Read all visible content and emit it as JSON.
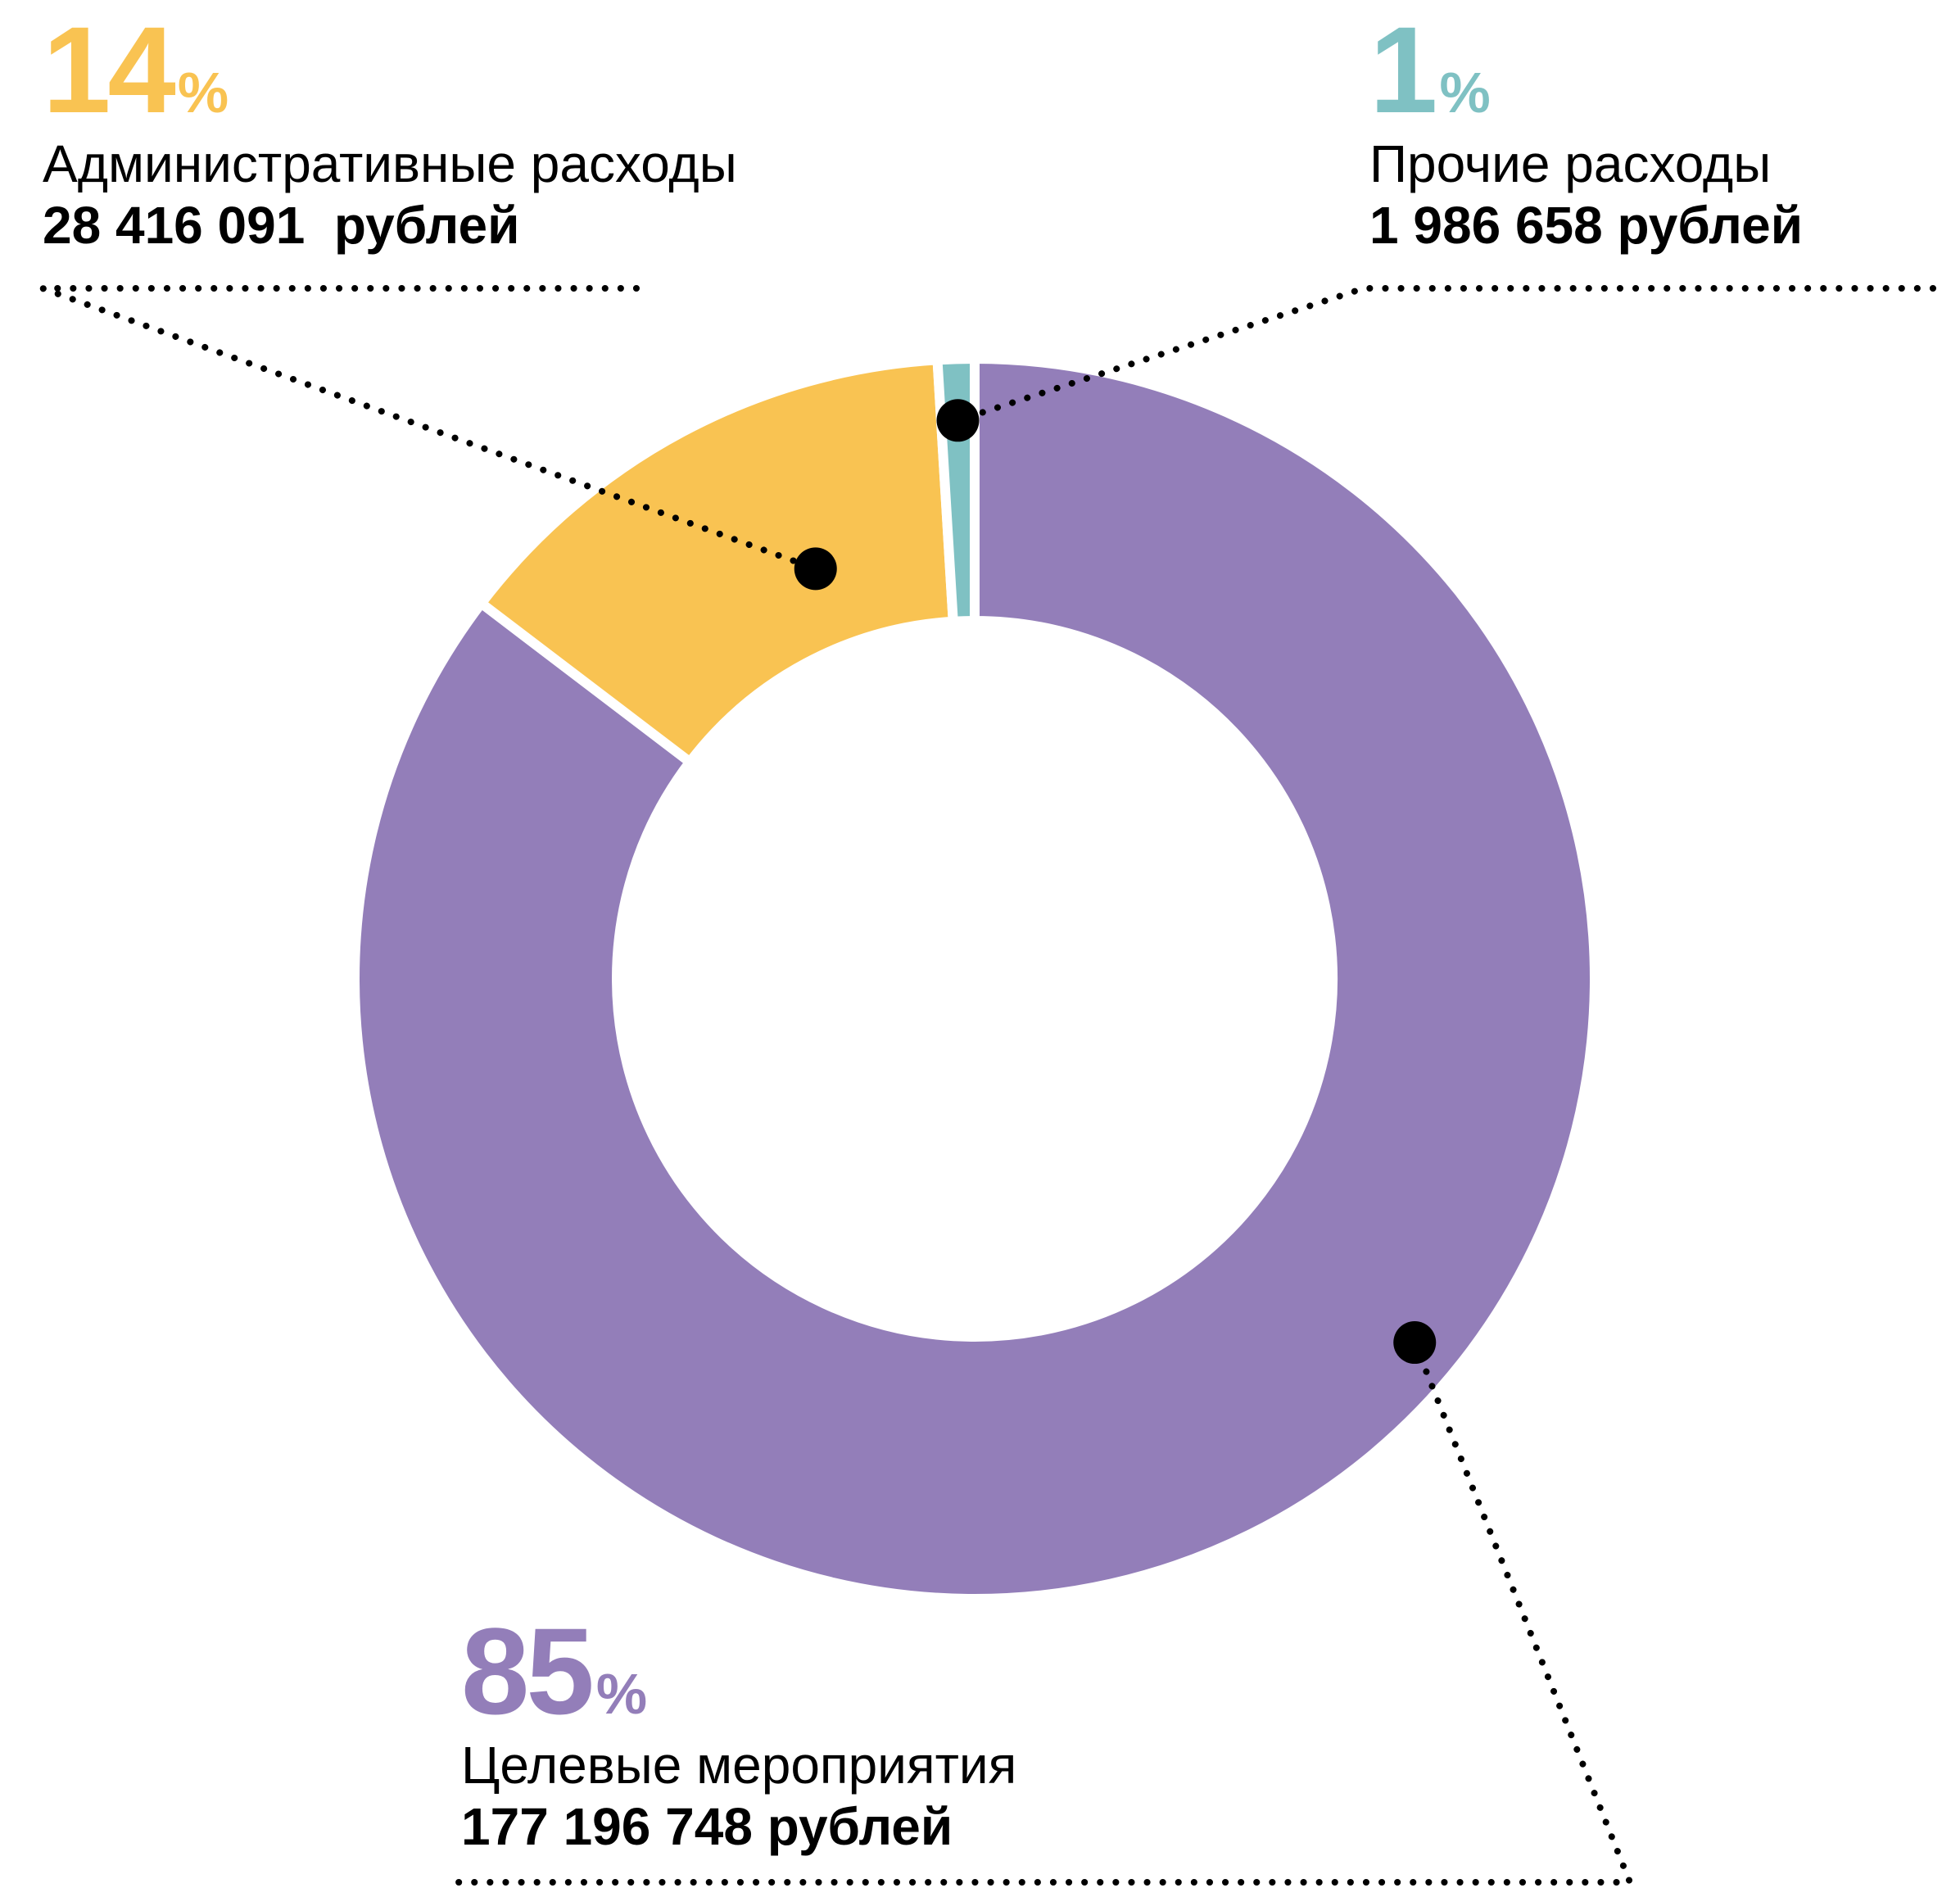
{
  "chart_data": {
    "type": "pie",
    "style": "donut",
    "slices": [
      {
        "label": "Целевые мероприятия",
        "percent": 85,
        "percent_label": "85",
        "amount_label": "177 196 748 рублей",
        "value": 177196748,
        "color": "#937EB9"
      },
      {
        "label": "Административные расходы",
        "percent": 14,
        "percent_label": "14",
        "amount_label": "28 416 091  рублей",
        "value": 28416091,
        "color": "#F9C352"
      },
      {
        "label": "Прочие расходы",
        "percent": 1,
        "percent_label": "1",
        "amount_label": "1 986 658 рублей",
        "value": 1986658,
        "color": "#7FC1C3"
      }
    ],
    "percent_sign": "%"
  }
}
